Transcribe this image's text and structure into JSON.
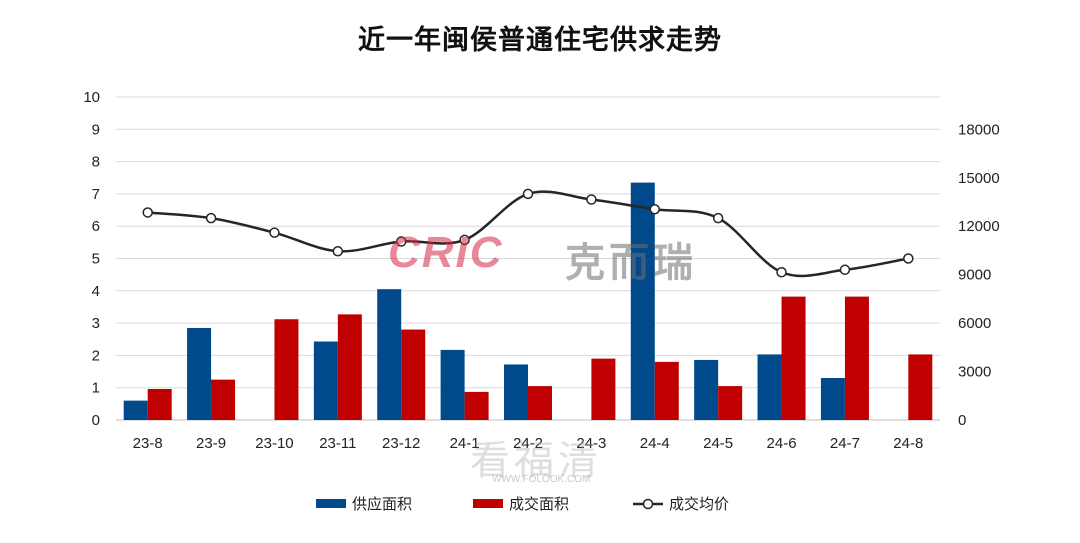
{
  "chart_data": {
    "type": "bar+line",
    "title": "近一年闽侯普通住宅供求走势",
    "categories": [
      "23-8",
      "23-9",
      "23-10",
      "23-11",
      "23-12",
      "24-1",
      "24-2",
      "24-3",
      "24-4",
      "24-5",
      "24-6",
      "24-7",
      "24-8"
    ],
    "series": [
      {
        "name": "供应面积",
        "type": "bar",
        "axis": "left",
        "color": "#004a8c",
        "values": [
          0.6,
          2.85,
          null,
          2.43,
          4.05,
          2.17,
          1.72,
          null,
          7.35,
          1.86,
          2.03,
          1.3,
          null
        ]
      },
      {
        "name": "成交面积",
        "type": "bar",
        "axis": "left",
        "color": "#c00000",
        "values": [
          0.96,
          1.25,
          3.12,
          3.27,
          2.8,
          0.87,
          1.05,
          1.9,
          1.8,
          1.05,
          3.82,
          3.82,
          2.03
        ]
      },
      {
        "name": "成交均价",
        "type": "line",
        "axis": "right",
        "color": "#262626",
        "values": [
          12850,
          12500,
          11600,
          10450,
          11050,
          11150,
          14000,
          13650,
          13050,
          12500,
          9150,
          9300,
          10000
        ]
      }
    ],
    "left_axis": {
      "min": 0,
      "max": 10,
      "ticks": [
        "0",
        "1",
        "2",
        "3",
        "4",
        "5",
        "6",
        "7",
        "8",
        "9",
        "10"
      ]
    },
    "right_axis": {
      "min": 0,
      "max": 20000,
      "ticks": [
        "0",
        "3000",
        "6000",
        "9000",
        "12000",
        "15000",
        "18000"
      ]
    },
    "grid": true,
    "legend_position": "bottom"
  },
  "watermarks": {
    "brand_latin": "CRIC",
    "brand_cn": "克而瑞",
    "site": "看福清",
    "site_url": "WWW.FOLOOK.COM"
  }
}
